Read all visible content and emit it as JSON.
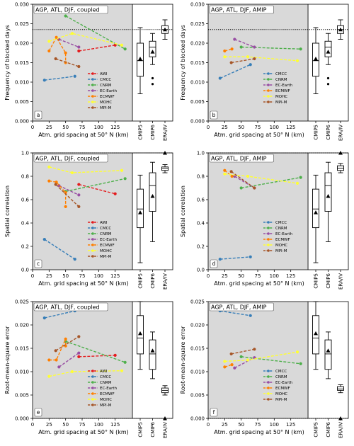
{
  "figure": {
    "xlabel": "Atm. grid spacing at 50° N (km)",
    "box_categories": [
      "CMIP5",
      "CMIP6",
      "ERA/IV"
    ],
    "colors": {
      "AWI": "#e41a1c",
      "CMCC": "#377eb8",
      "CNRM": "#4daf4a",
      "EC-Earth": "#984ea3",
      "ECMWF": "#ff7f00",
      "MOHC": "#ffff33",
      "MPI-M": "#a65628"
    },
    "panel_bg": "#d9d9d9"
  },
  "chart_data": [
    {
      "panel": "a",
      "title": "AGP, ATL, DJF, coupled",
      "ylabel": "Frequency of blocked days",
      "type": "line",
      "ylim": [
        0,
        0.03
      ],
      "yticks": [
        0,
        0.005,
        0.01,
        0.015,
        0.02,
        0.025,
        0.03
      ],
      "ytick_labels": [
        "0.000",
        "0.005",
        "0.010",
        "0.015",
        "0.020",
        "0.025",
        "0.030"
      ],
      "xlim": [
        0,
        150
      ],
      "xticks": [
        0,
        25,
        50,
        75,
        100,
        125
      ],
      "ref_line": 0.0235,
      "series": [
        {
          "name": "AWI",
          "x": [
            70,
            125
          ],
          "y": [
            0.018,
            0.0195
          ]
        },
        {
          "name": "CMCC",
          "x": [
            18,
            64
          ],
          "y": [
            0.0105,
            0.0115
          ]
        },
        {
          "name": "CNRM",
          "x": [
            50,
            140
          ],
          "y": [
            0.027,
            0.0185
          ]
        },
        {
          "name": "EC-Earth",
          "x": [
            40,
            70
          ],
          "y": [
            0.021,
            0.019
          ]
        },
        {
          "name": "ECMWF",
          "x": [
            25,
            36,
            50,
            50
          ],
          "y": [
            0.018,
            0.0215,
            0.0175,
            0.015
          ]
        },
        {
          "name": "MOHC",
          "x": [
            25,
            60,
            135
          ],
          "y": [
            0.0205,
            0.0225,
            0.0195
          ]
        },
        {
          "name": "MPI-M",
          "x": [
            35,
            70
          ],
          "y": [
            0.016,
            0.014
          ]
        }
      ],
      "boxes": [
        {
          "category": "CMIP5",
          "whisker_low": 0.007,
          "q1": 0.0115,
          "median": 0.0155,
          "q3": 0.02,
          "whisker_high": 0.024,
          "mean": 0.016,
          "fliers": []
        },
        {
          "category": "CMIP6",
          "whisker_low": 0.0145,
          "q1": 0.0165,
          "median": 0.019,
          "q3": 0.0205,
          "whisker_high": 0.0225,
          "mean": 0.0178,
          "fliers": [
            0.011,
            0.0095
          ]
        },
        {
          "category": "ERA/IV",
          "whisker_low": 0.021,
          "q1": 0.0225,
          "median": 0.0235,
          "q3": 0.0245,
          "whisker_high": 0.026,
          "mean": 0.0235,
          "fliers": []
        }
      ]
    },
    {
      "panel": "b",
      "title": "AGP, ATL, DJF, AMIP",
      "ylabel": "Frequency of blocked days",
      "type": "line",
      "ylim": [
        0,
        0.03
      ],
      "yticks": [
        0,
        0.005,
        0.01,
        0.015,
        0.02,
        0.025,
        0.03
      ],
      "ytick_labels": [
        "0.000",
        "0.005",
        "0.010",
        "0.015",
        "0.020",
        "0.025",
        "0.030"
      ],
      "xlim": [
        0,
        150
      ],
      "xticks": [
        0,
        25,
        50,
        75,
        100,
        125
      ],
      "ref_line": 0.0235,
      "series": [
        {
          "name": "CMCC",
          "x": [
            18,
            64
          ],
          "y": [
            0.011,
            0.0145
          ]
        },
        {
          "name": "CNRM",
          "x": [
            50,
            140
          ],
          "y": [
            0.019,
            0.0185
          ]
        },
        {
          "name": "EC-Earth",
          "x": [
            40,
            70
          ],
          "y": [
            0.021,
            0.019
          ]
        },
        {
          "name": "ECMWF",
          "x": [
            25,
            36
          ],
          "y": [
            0.018,
            0.0185
          ]
        },
        {
          "name": "MOHC",
          "x": [
            25,
            60,
            135
          ],
          "y": [
            0.0165,
            0.0165,
            0.0155
          ]
        },
        {
          "name": "MPI-M",
          "x": [
            35,
            70
          ],
          "y": [
            0.015,
            0.016
          ]
        }
      ],
      "boxes": [
        {
          "category": "CMIP5",
          "whisker_low": 0.007,
          "q1": 0.0115,
          "median": 0.0155,
          "q3": 0.02,
          "whisker_high": 0.024,
          "mean": 0.016,
          "fliers": []
        },
        {
          "category": "CMIP6",
          "whisker_low": 0.0145,
          "q1": 0.0165,
          "median": 0.019,
          "q3": 0.0205,
          "whisker_high": 0.0225,
          "mean": 0.0178,
          "fliers": [
            0.011,
            0.0095
          ]
        },
        {
          "category": "ERA/IV",
          "whisker_low": 0.021,
          "q1": 0.0225,
          "median": 0.0235,
          "q3": 0.0245,
          "whisker_high": 0.026,
          "mean": 0.0235,
          "fliers": []
        }
      ]
    },
    {
      "panel": "c",
      "title": "AGP, ATL, DJF, coupled",
      "ylabel": "Spatial correlation",
      "type": "line",
      "ylim": [
        0,
        1.0
      ],
      "yticks": [
        0,
        0.2,
        0.4,
        0.6,
        0.8,
        1.0
      ],
      "ytick_labels": [
        "0.0",
        "0.2",
        "0.4",
        "0.6",
        "0.8",
        "1.0"
      ],
      "xlim": [
        0,
        150
      ],
      "xticks": [
        0,
        25,
        50,
        75,
        100,
        125
      ],
      "ref_line": 1.0,
      "series": [
        {
          "name": "AWI",
          "x": [
            70,
            125
          ],
          "y": [
            0.73,
            0.65
          ]
        },
        {
          "name": "CMCC",
          "x": [
            18,
            64
          ],
          "y": [
            0.26,
            0.09
          ]
        },
        {
          "name": "CNRM",
          "x": [
            50,
            140
          ],
          "y": [
            0.67,
            0.78
          ]
        },
        {
          "name": "EC-Earth",
          "x": [
            40,
            70
          ],
          "y": [
            0.72,
            0.64
          ]
        },
        {
          "name": "ECMWF",
          "x": [
            25,
            36,
            50,
            50
          ],
          "y": [
            0.76,
            0.75,
            0.66,
            0.54
          ]
        },
        {
          "name": "MOHC",
          "x": [
            25,
            60,
            135
          ],
          "y": [
            0.88,
            0.83,
            0.85
          ]
        },
        {
          "name": "MPI-M",
          "x": [
            35,
            70
          ],
          "y": [
            0.73,
            0.54
          ]
        }
      ],
      "boxes": [
        {
          "category": "CMIP5",
          "whisker_low": 0.06,
          "q1": 0.36,
          "median": 0.52,
          "q3": 0.69,
          "whisker_high": 0.81,
          "mean": 0.49,
          "fliers": []
        },
        {
          "category": "CMIP6",
          "whisker_low": 0.24,
          "q1": 0.5,
          "median": 0.72,
          "q3": 0.83,
          "whisker_high": 0.92,
          "mean": 0.63,
          "fliers": []
        },
        {
          "category": "ERA/IV",
          "whisker_low": 0.83,
          "q1": 0.85,
          "median": 0.87,
          "q3": 0.88,
          "whisker_high": 0.9,
          "mean": 1.0,
          "fliers": []
        }
      ]
    },
    {
      "panel": "d",
      "title": "AGP, ATL, DJF, AMIP",
      "ylabel": "Spatial correlation",
      "type": "line",
      "ylim": [
        0,
        1.0
      ],
      "yticks": [
        0,
        0.2,
        0.4,
        0.6,
        0.8,
        1.0
      ],
      "ytick_labels": [
        "0.0",
        "0.2",
        "0.4",
        "0.6",
        "0.8",
        "1.0"
      ],
      "xlim": [
        0,
        150
      ],
      "xticks": [
        0,
        25,
        50,
        75,
        100,
        125
      ],
      "ref_line": 1.0,
      "series": [
        {
          "name": "CMCC",
          "x": [
            18,
            64
          ],
          "y": [
            0.09,
            0.11
          ]
        },
        {
          "name": "CNRM",
          "x": [
            50,
            140
          ],
          "y": [
            0.7,
            0.79
          ]
        },
        {
          "name": "EC-Earth",
          "x": [
            40,
            70
          ],
          "y": [
            0.8,
            0.7
          ]
        },
        {
          "name": "ECMWF",
          "x": [
            25,
            36
          ],
          "y": [
            0.85,
            0.8
          ]
        },
        {
          "name": "MOHC",
          "x": [
            25,
            60,
            135
          ],
          "y": [
            0.82,
            0.8,
            0.74
          ]
        },
        {
          "name": "MPI-M",
          "x": [
            35,
            70
          ],
          "y": [
            0.84,
            0.7
          ]
        }
      ],
      "boxes": [
        {
          "category": "CMIP5",
          "whisker_low": 0.06,
          "q1": 0.36,
          "median": 0.52,
          "q3": 0.69,
          "whisker_high": 0.81,
          "mean": 0.49,
          "fliers": []
        },
        {
          "category": "CMIP6",
          "whisker_low": 0.24,
          "q1": 0.5,
          "median": 0.72,
          "q3": 0.83,
          "whisker_high": 0.92,
          "mean": 0.63,
          "fliers": []
        },
        {
          "category": "ERA/IV",
          "whisker_low": 0.83,
          "q1": 0.85,
          "median": 0.87,
          "q3": 0.89,
          "whisker_high": 0.91,
          "mean": 1.0,
          "fliers": []
        }
      ]
    },
    {
      "panel": "e",
      "title": "AGP, ATL, DJF, coupled",
      "ylabel": "Root-mean-square error",
      "type": "line",
      "ylim": [
        0,
        0.025
      ],
      "yticks": [
        0,
        0.005,
        0.01,
        0.015,
        0.02,
        0.025
      ],
      "ytick_labels": [
        "0.000",
        "0.005",
        "0.010",
        "0.015",
        "0.020",
        "0.025"
      ],
      "xlim": [
        0,
        150
      ],
      "xticks": [
        0,
        25,
        50,
        75,
        100,
        125
      ],
      "ref_line": 0,
      "series": [
        {
          "name": "AWI",
          "x": [
            70,
            125
          ],
          "y": [
            0.0132,
            0.0135
          ]
        },
        {
          "name": "CMCC",
          "x": [
            18,
            64
          ],
          "y": [
            0.0215,
            0.023
          ]
        },
        {
          "name": "CNRM",
          "x": [
            50,
            140
          ],
          "y": [
            0.0165,
            0.012
          ]
        },
        {
          "name": "EC-Earth",
          "x": [
            40,
            70
          ],
          "y": [
            0.011,
            0.014
          ]
        },
        {
          "name": "ECMWF",
          "x": [
            25,
            36,
            50,
            50
          ],
          "y": [
            0.0125,
            0.0125,
            0.017,
            0.0155
          ]
        },
        {
          "name": "MOHC",
          "x": [
            25,
            60,
            135
          ],
          "y": [
            0.009,
            0.01,
            0.0102
          ]
        },
        {
          "name": "MPI-M",
          "x": [
            35,
            70
          ],
          "y": [
            0.0145,
            0.0175
          ]
        }
      ],
      "boxes": [
        {
          "category": "CMIP5",
          "whisker_low": 0.0105,
          "q1": 0.0138,
          "median": 0.0172,
          "q3": 0.022,
          "whisker_high": 0.025,
          "mean": 0.0182,
          "fliers": []
        },
        {
          "category": "CMIP6",
          "whisker_low": 0.0085,
          "q1": 0.0105,
          "median": 0.0138,
          "q3": 0.0168,
          "whisker_high": 0.0185,
          "mean": 0.0145,
          "fliers": []
        },
        {
          "category": "ERA/IV",
          "whisker_low": 0.005,
          "q1": 0.0055,
          "median": 0.006,
          "q3": 0.0065,
          "whisker_high": 0.007,
          "mean": 0,
          "fliers": []
        }
      ]
    },
    {
      "panel": "f",
      "title": "AGP, ATL, DJF, AMIP",
      "ylabel": "Root-mean-square error",
      "type": "line",
      "ylim": [
        0,
        0.025
      ],
      "yticks": [
        0,
        0.005,
        0.01,
        0.015,
        0.02,
        0.025
      ],
      "ytick_labels": [
        "0.000",
        "0.005",
        "0.010",
        "0.015",
        "0.020",
        "0.025"
      ],
      "xlim": [
        0,
        150
      ],
      "xticks": [
        0,
        25,
        50,
        75,
        100,
        125
      ],
      "ref_line": 0,
      "series": [
        {
          "name": "CMCC",
          "x": [
            18,
            64
          ],
          "y": [
            0.023,
            0.022
          ]
        },
        {
          "name": "CNRM",
          "x": [
            50,
            140
          ],
          "y": [
            0.0132,
            0.0117
          ]
        },
        {
          "name": "EC-Earth",
          "x": [
            40,
            70
          ],
          "y": [
            0.0108,
            0.013
          ]
        },
        {
          "name": "ECMWF",
          "x": [
            25,
            36
          ],
          "y": [
            0.011,
            0.0115
          ]
        },
        {
          "name": "MOHC",
          "x": [
            25,
            60,
            135
          ],
          "y": [
            0.0122,
            0.0125,
            0.0142
          ]
        },
        {
          "name": "MPI-M",
          "x": [
            35,
            70
          ],
          "y": [
            0.0138,
            0.0148
          ]
        }
      ],
      "boxes": [
        {
          "category": "CMIP5",
          "whisker_low": 0.0105,
          "q1": 0.0138,
          "median": 0.0172,
          "q3": 0.022,
          "whisker_high": 0.025,
          "mean": 0.0182,
          "fliers": []
        },
        {
          "category": "CMIP6",
          "whisker_low": 0.0085,
          "q1": 0.0105,
          "median": 0.0138,
          "q3": 0.0168,
          "whisker_high": 0.0185,
          "mean": 0.0145,
          "fliers": []
        },
        {
          "category": "ERA/IV",
          "whisker_low": 0.0055,
          "q1": 0.006,
          "median": 0.0063,
          "q3": 0.0068,
          "whisker_high": 0.0072,
          "mean": 0,
          "fliers": []
        }
      ]
    }
  ]
}
